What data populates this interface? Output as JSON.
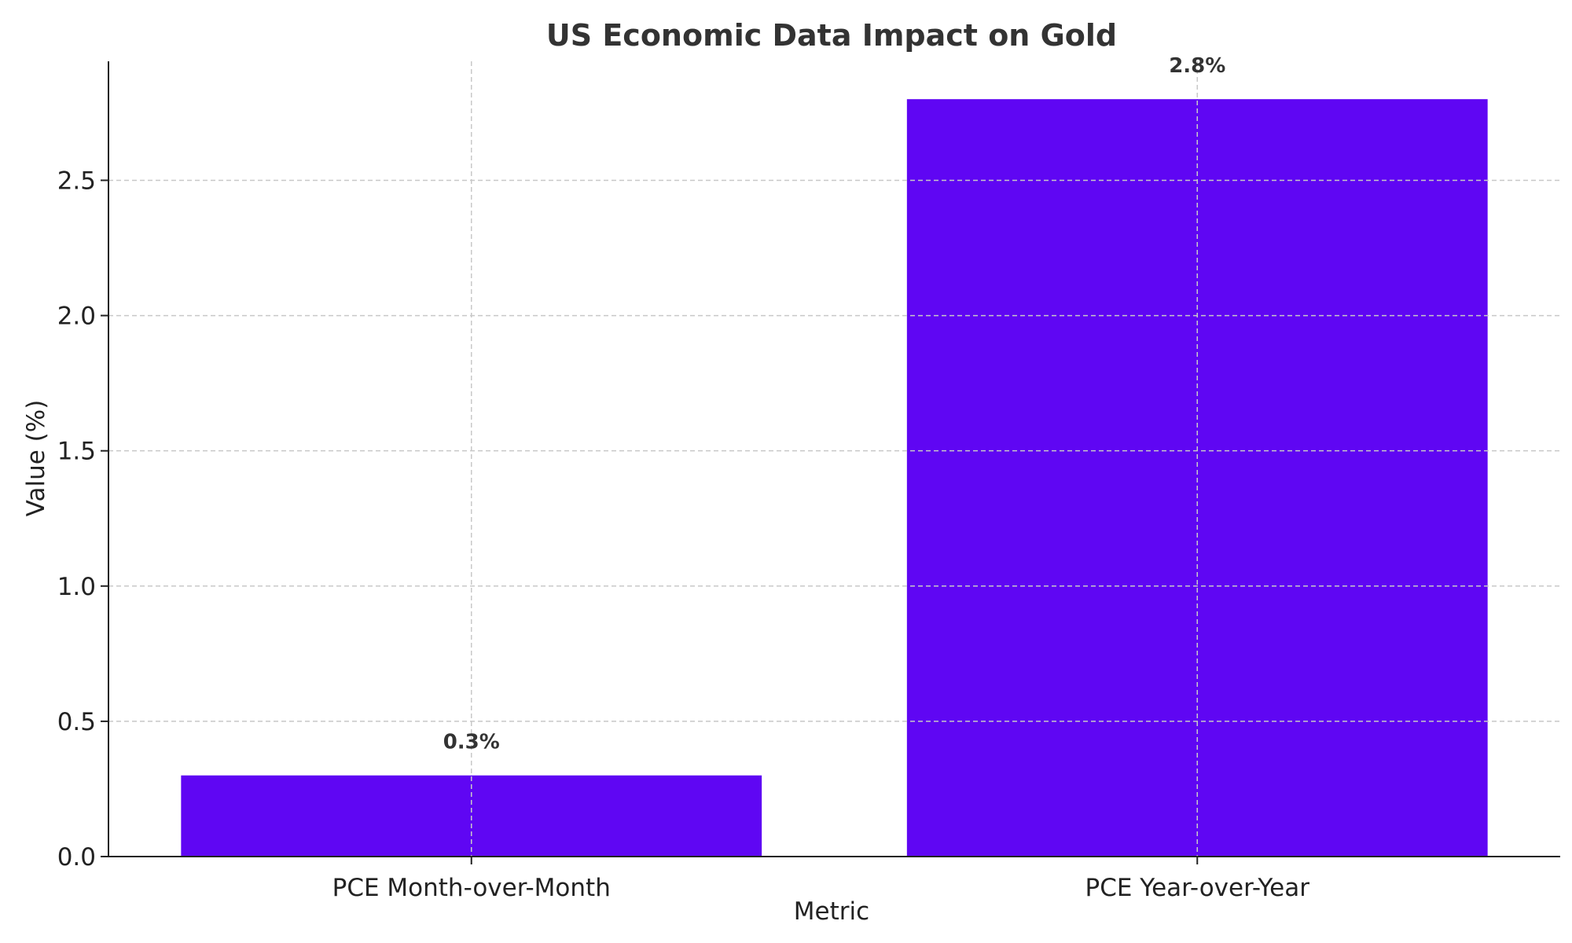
{
  "chart_data": {
    "type": "bar",
    "title": "US Economic Data Impact on Gold",
    "xlabel": "Metric",
    "ylabel": "Value (%)",
    "categories": [
      "PCE Month-over-Month",
      "PCE Year-over-Year"
    ],
    "values": [
      0.3,
      2.8
    ],
    "value_labels": [
      "0.3%",
      "2.8%"
    ],
    "ylim": [
      0,
      2.94
    ],
    "yticks": [
      0.0,
      0.5,
      1.0,
      1.5,
      2.0,
      2.5
    ],
    "ytick_labels": [
      "0.0",
      "0.5",
      "1.0",
      "1.5",
      "2.0",
      "2.5"
    ],
    "grid": true,
    "bar_color": "#5f06f3"
  }
}
